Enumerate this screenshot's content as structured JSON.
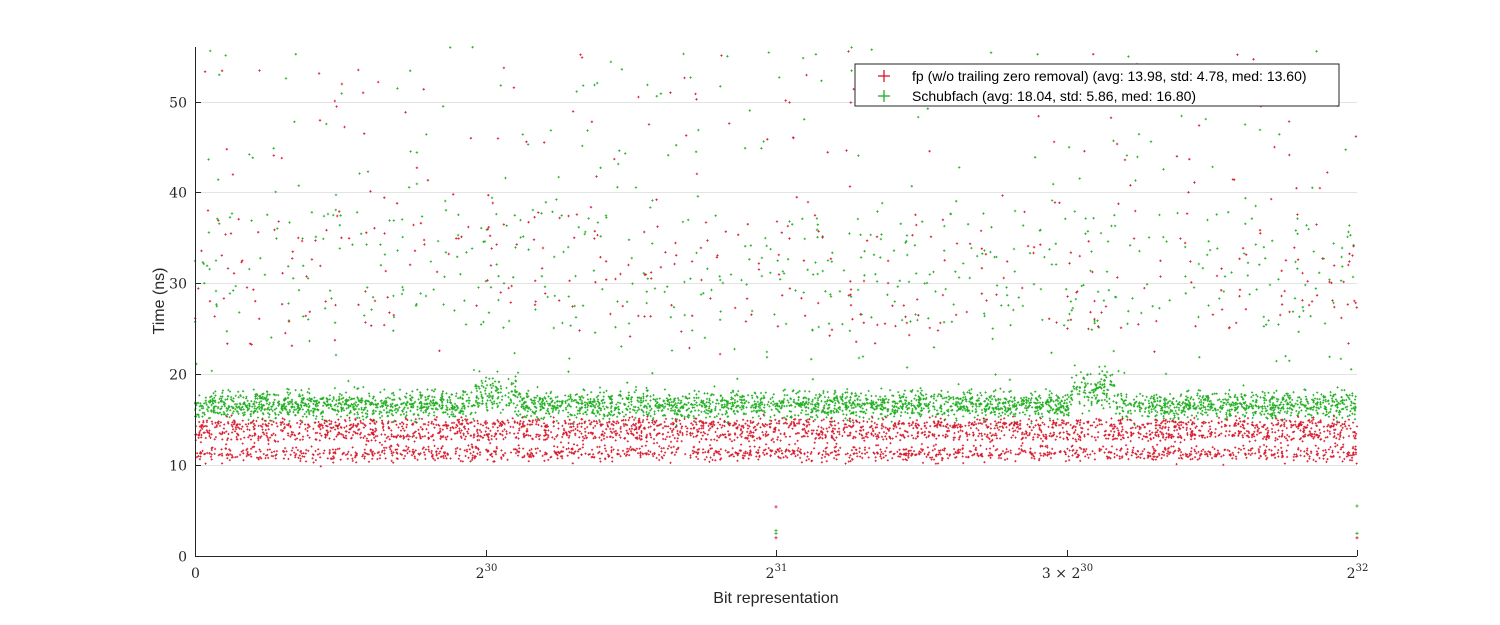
{
  "chart_data": {
    "type": "scatter",
    "title": "",
    "xlabel": "Bit representation",
    "ylabel": "Time (ns)",
    "xlim": [
      0,
      4294967296
    ],
    "ylim": [
      0,
      56
    ],
    "grid": true,
    "legend_position": "top-right",
    "x_ticks": [
      {
        "value": 0,
        "label": "0",
        "sup": ""
      },
      {
        "value": 1073741824,
        "label": "2",
        "sup": "30"
      },
      {
        "value": 2147483648,
        "label": "2",
        "sup": "31"
      },
      {
        "value": 3221225472,
        "label": "3 × 2",
        "sup": "30"
      },
      {
        "value": 4294967296,
        "label": "2",
        "sup": "32"
      }
    ],
    "y_ticks": [
      0,
      10,
      20,
      30,
      40,
      50
    ],
    "series": [
      {
        "name": "fp (w/o trailing zero removal) (avg: 13.98, std: 4.78, med: 13.60)",
        "color": "#d7192b",
        "marker": "+",
        "avg": 13.98,
        "std": 4.78,
        "med": 13.6,
        "bands": [
          {
            "center": 11.3,
            "spread": 0.45,
            "weight": 0.38
          },
          {
            "center": 13.3,
            "spread": 0.35,
            "weight": 0.3
          },
          {
            "center": 14.5,
            "spread": 0.35,
            "weight": 0.32
          }
        ],
        "outlier_range": [
          22,
          56
        ],
        "special_points": [
          {
            "x": 2147483648,
            "y": 2.0
          },
          {
            "x": 2147483648,
            "y": 5.4
          },
          {
            "x": 4294967296,
            "y": 2.0
          }
        ]
      },
      {
        "name": "Schubfach (avg: 18.04, std: 5.86, med: 16.80)",
        "color": "#1fae1f",
        "marker": "+",
        "avg": 18.04,
        "std": 5.86,
        "med": 16.8,
        "bands": [
          {
            "center": 16.6,
            "spread": 0.75,
            "weight": 1.0
          }
        ],
        "bumps": [
          {
            "x_start": 1030000000,
            "x_end": 1200000000,
            "center": 17.8
          },
          {
            "x_start": 3230000000,
            "x_end": 3400000000,
            "center": 18.4
          }
        ],
        "outlier_range": [
          19,
          56
        ],
        "special_points": [
          {
            "x": 2147483648,
            "y": 2.5
          },
          {
            "x": 2147483648,
            "y": 2.8
          },
          {
            "x": 4294967296,
            "y": 2.5
          },
          {
            "x": 4294967296,
            "y": 5.5
          }
        ]
      }
    ]
  }
}
